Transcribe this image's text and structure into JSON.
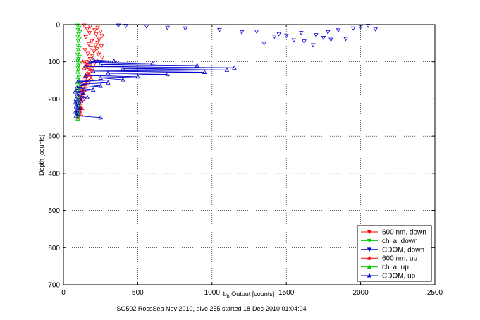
{
  "chart_data": {
    "type": "scatter",
    "xlabel_main": "b",
    "xlabel_sub": "b",
    "xlabel_rest": " Output [counts]",
    "ylabel": "Depth [counts]",
    "caption": "SG502 RossSea Nov 2010, dive 255 started 18-Dec-2010 01:04:04",
    "xlim": [
      0,
      2500
    ],
    "ylim": [
      0,
      700
    ],
    "y_reversed": true,
    "grid": true,
    "legend_position": "bottom-right",
    "xticks": [
      "0",
      "500",
      "1000",
      "1500",
      "2000",
      "2500"
    ],
    "yticks": [
      "0",
      "100",
      "200",
      "300",
      "400",
      "500",
      "600",
      "700"
    ],
    "series": [
      {
        "name": "600 nm, down",
        "color": "#ff0000",
        "marker": "triangle-down",
        "line": false,
        "x": [
          140,
          180,
          230,
          160,
          210,
          250,
          175,
          220,
          260,
          150,
          200,
          240,
          190,
          230,
          170,
          215,
          255,
          185,
          225,
          145,
          205,
          245,
          165,
          235,
          195,
          260,
          180,
          220,
          155,
          210
        ],
        "y": [
          2,
          5,
          8,
          12,
          15,
          18,
          22,
          26,
          30,
          33,
          37,
          40,
          44,
          48,
          52,
          55,
          58,
          62,
          65,
          68,
          72,
          75,
          78,
          80,
          84,
          88,
          92,
          96,
          100,
          104
        ]
      },
      {
        "name": "chl a, down",
        "color": "#00cc00",
        "marker": "triangle-down",
        "line": false,
        "x": [
          95,
          105,
          98,
          110,
          102,
          96,
          108,
          100,
          104,
          97,
          106,
          99,
          103,
          95,
          107,
          101,
          98,
          105,
          100,
          96
        ],
        "y": [
          2,
          8,
          14,
          20,
          26,
          32,
          38,
          44,
          50,
          56,
          62,
          68,
          74,
          80,
          86,
          92,
          98,
          104,
          110,
          116
        ]
      },
      {
        "name": "CDOM, down",
        "color": "#0000cc",
        "marker": "triangle-down",
        "line": false,
        "x": [
          370,
          420,
          560,
          700,
          820,
          1050,
          1200,
          1300,
          1450,
          1500,
          1600,
          1700,
          1750,
          1800,
          1850,
          1900,
          1950,
          2000,
          2050,
          2100,
          1620,
          1420,
          1350,
          1780,
          1680,
          1550
        ],
        "y": [
          2,
          3,
          5,
          8,
          10,
          14,
          20,
          18,
          25,
          30,
          22,
          28,
          35,
          40,
          15,
          38,
          10,
          6,
          3,
          12,
          45,
          32,
          50,
          20,
          55,
          42
        ]
      },
      {
        "name": "600 nm, up",
        "color": "#ff0000",
        "marker": "triangle-up",
        "line": true,
        "x": [
          130,
          170,
          150,
          190,
          140,
          180,
          200,
          160,
          175,
          145,
          185,
          155,
          165,
          130,
          150,
          120,
          140,
          115,
          135,
          125,
          110,
          130,
          120,
          105,
          115,
          110,
          125,
          108,
          118,
          100
        ],
        "y": [
          100,
          104,
          108,
          112,
          116,
          120,
          125,
          130,
          135,
          140,
          145,
          150,
          155,
          160,
          165,
          170,
          175,
          180,
          185,
          190,
          195,
          200,
          205,
          210,
          215,
          220,
          225,
          230,
          240,
          250
        ]
      },
      {
        "name": "chl a, up",
        "color": "#00cc00",
        "marker": "triangle-up",
        "line": false,
        "x": [
          100,
          96,
          104,
          98,
          102,
          95,
          103,
          99,
          97,
          101,
          98,
          100,
          96,
          102,
          99,
          97,
          101,
          98,
          100,
          96
        ],
        "y": [
          120,
          127,
          134,
          141,
          148,
          155,
          162,
          169,
          176,
          183,
          190,
          197,
          204,
          211,
          218,
          225,
          232,
          239,
          246,
          253
        ]
      },
      {
        "name": "CDOM, up",
        "color": "#0000cc",
        "marker": "triangle-up",
        "line": true,
        "x": [
          200,
          340,
          180,
          600,
          250,
          900,
          150,
          1150,
          400,
          1100,
          200,
          950,
          300,
          700,
          150,
          500,
          250,
          400,
          100,
          300,
          120,
          250,
          90,
          200,
          80,
          130,
          90,
          160,
          85,
          120,
          80,
          100,
          85,
          110,
          90,
          80,
          100,
          85,
          250
        ],
        "y": [
          95,
          98,
          101,
          104,
          107,
          110,
          113,
          116,
          119,
          122,
          125,
          128,
          131,
          134,
          137,
          140,
          143,
          148,
          152,
          156,
          160,
          165,
          170,
          175,
          180,
          185,
          190,
          195,
          200,
          205,
          210,
          215,
          220,
          225,
          230,
          235,
          240,
          245,
          250
        ]
      }
    ]
  }
}
